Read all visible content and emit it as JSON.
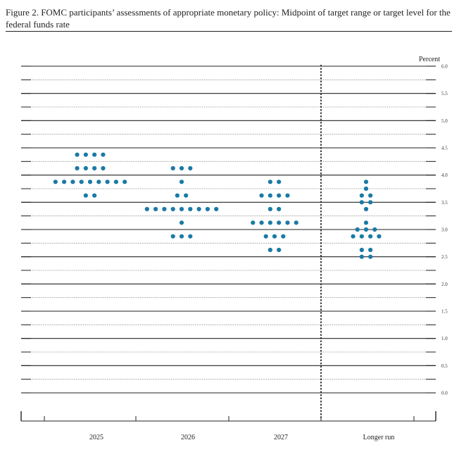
{
  "figure": {
    "title": "Figure 2.  FOMC participants’ assessments of appropriate monetary policy: Midpoint of target range or target level for the federal funds rate"
  },
  "chart_data": {
    "type": "scatter",
    "subtype": "dot-plot",
    "ylabel": "Percent",
    "ylim": [
      0,
      6
    ],
    "ytick_labels": [
      "0.0",
      "0.5",
      "1.0",
      "1.5",
      "2.0",
      "2.5",
      "3.0",
      "3.5",
      "4.0",
      "4.5",
      "5.0",
      "5.5",
      "6.0"
    ],
    "categories": [
      "2025",
      "2026",
      "2027",
      "Longer run"
    ],
    "grid": "horizontal lines every 0.25, solid at whole and half-percent, dotted between",
    "dot_color": "#1a7aa6",
    "series": [
      {
        "category": "2025",
        "points": [
          {
            "y": 4.375,
            "count": 4
          },
          {
            "y": 4.125,
            "count": 4
          },
          {
            "y": 3.875,
            "count": 9
          },
          {
            "y": 3.625,
            "count": 2
          }
        ]
      },
      {
        "category": "2026",
        "points": [
          {
            "y": 4.125,
            "count": 3
          },
          {
            "y": 3.875,
            "count": 1
          },
          {
            "y": 3.625,
            "count": 2
          },
          {
            "y": 3.375,
            "count": 9
          },
          {
            "y": 3.125,
            "count": 1
          },
          {
            "y": 2.875,
            "count": 3
          }
        ]
      },
      {
        "category": "2027",
        "points": [
          {
            "y": 3.875,
            "count": 2
          },
          {
            "y": 3.625,
            "count": 4
          },
          {
            "y": 3.375,
            "count": 2
          },
          {
            "y": 3.125,
            "count": 6
          },
          {
            "y": 2.875,
            "count": 3
          },
          {
            "y": 2.625,
            "count": 2
          }
        ]
      },
      {
        "category": "Longer run",
        "points": [
          {
            "y": 3.875,
            "count": 1
          },
          {
            "y": 3.75,
            "count": 1
          },
          {
            "y": 3.625,
            "count": 2
          },
          {
            "y": 3.5,
            "count": 2
          },
          {
            "y": 3.375,
            "count": 1
          },
          {
            "y": 3.125,
            "count": 1
          },
          {
            "y": 3.0,
            "count": 3
          },
          {
            "y": 2.875,
            "count": 4
          },
          {
            "y": 2.625,
            "count": 2
          },
          {
            "y": 2.5,
            "count": 2
          }
        ]
      }
    ]
  }
}
